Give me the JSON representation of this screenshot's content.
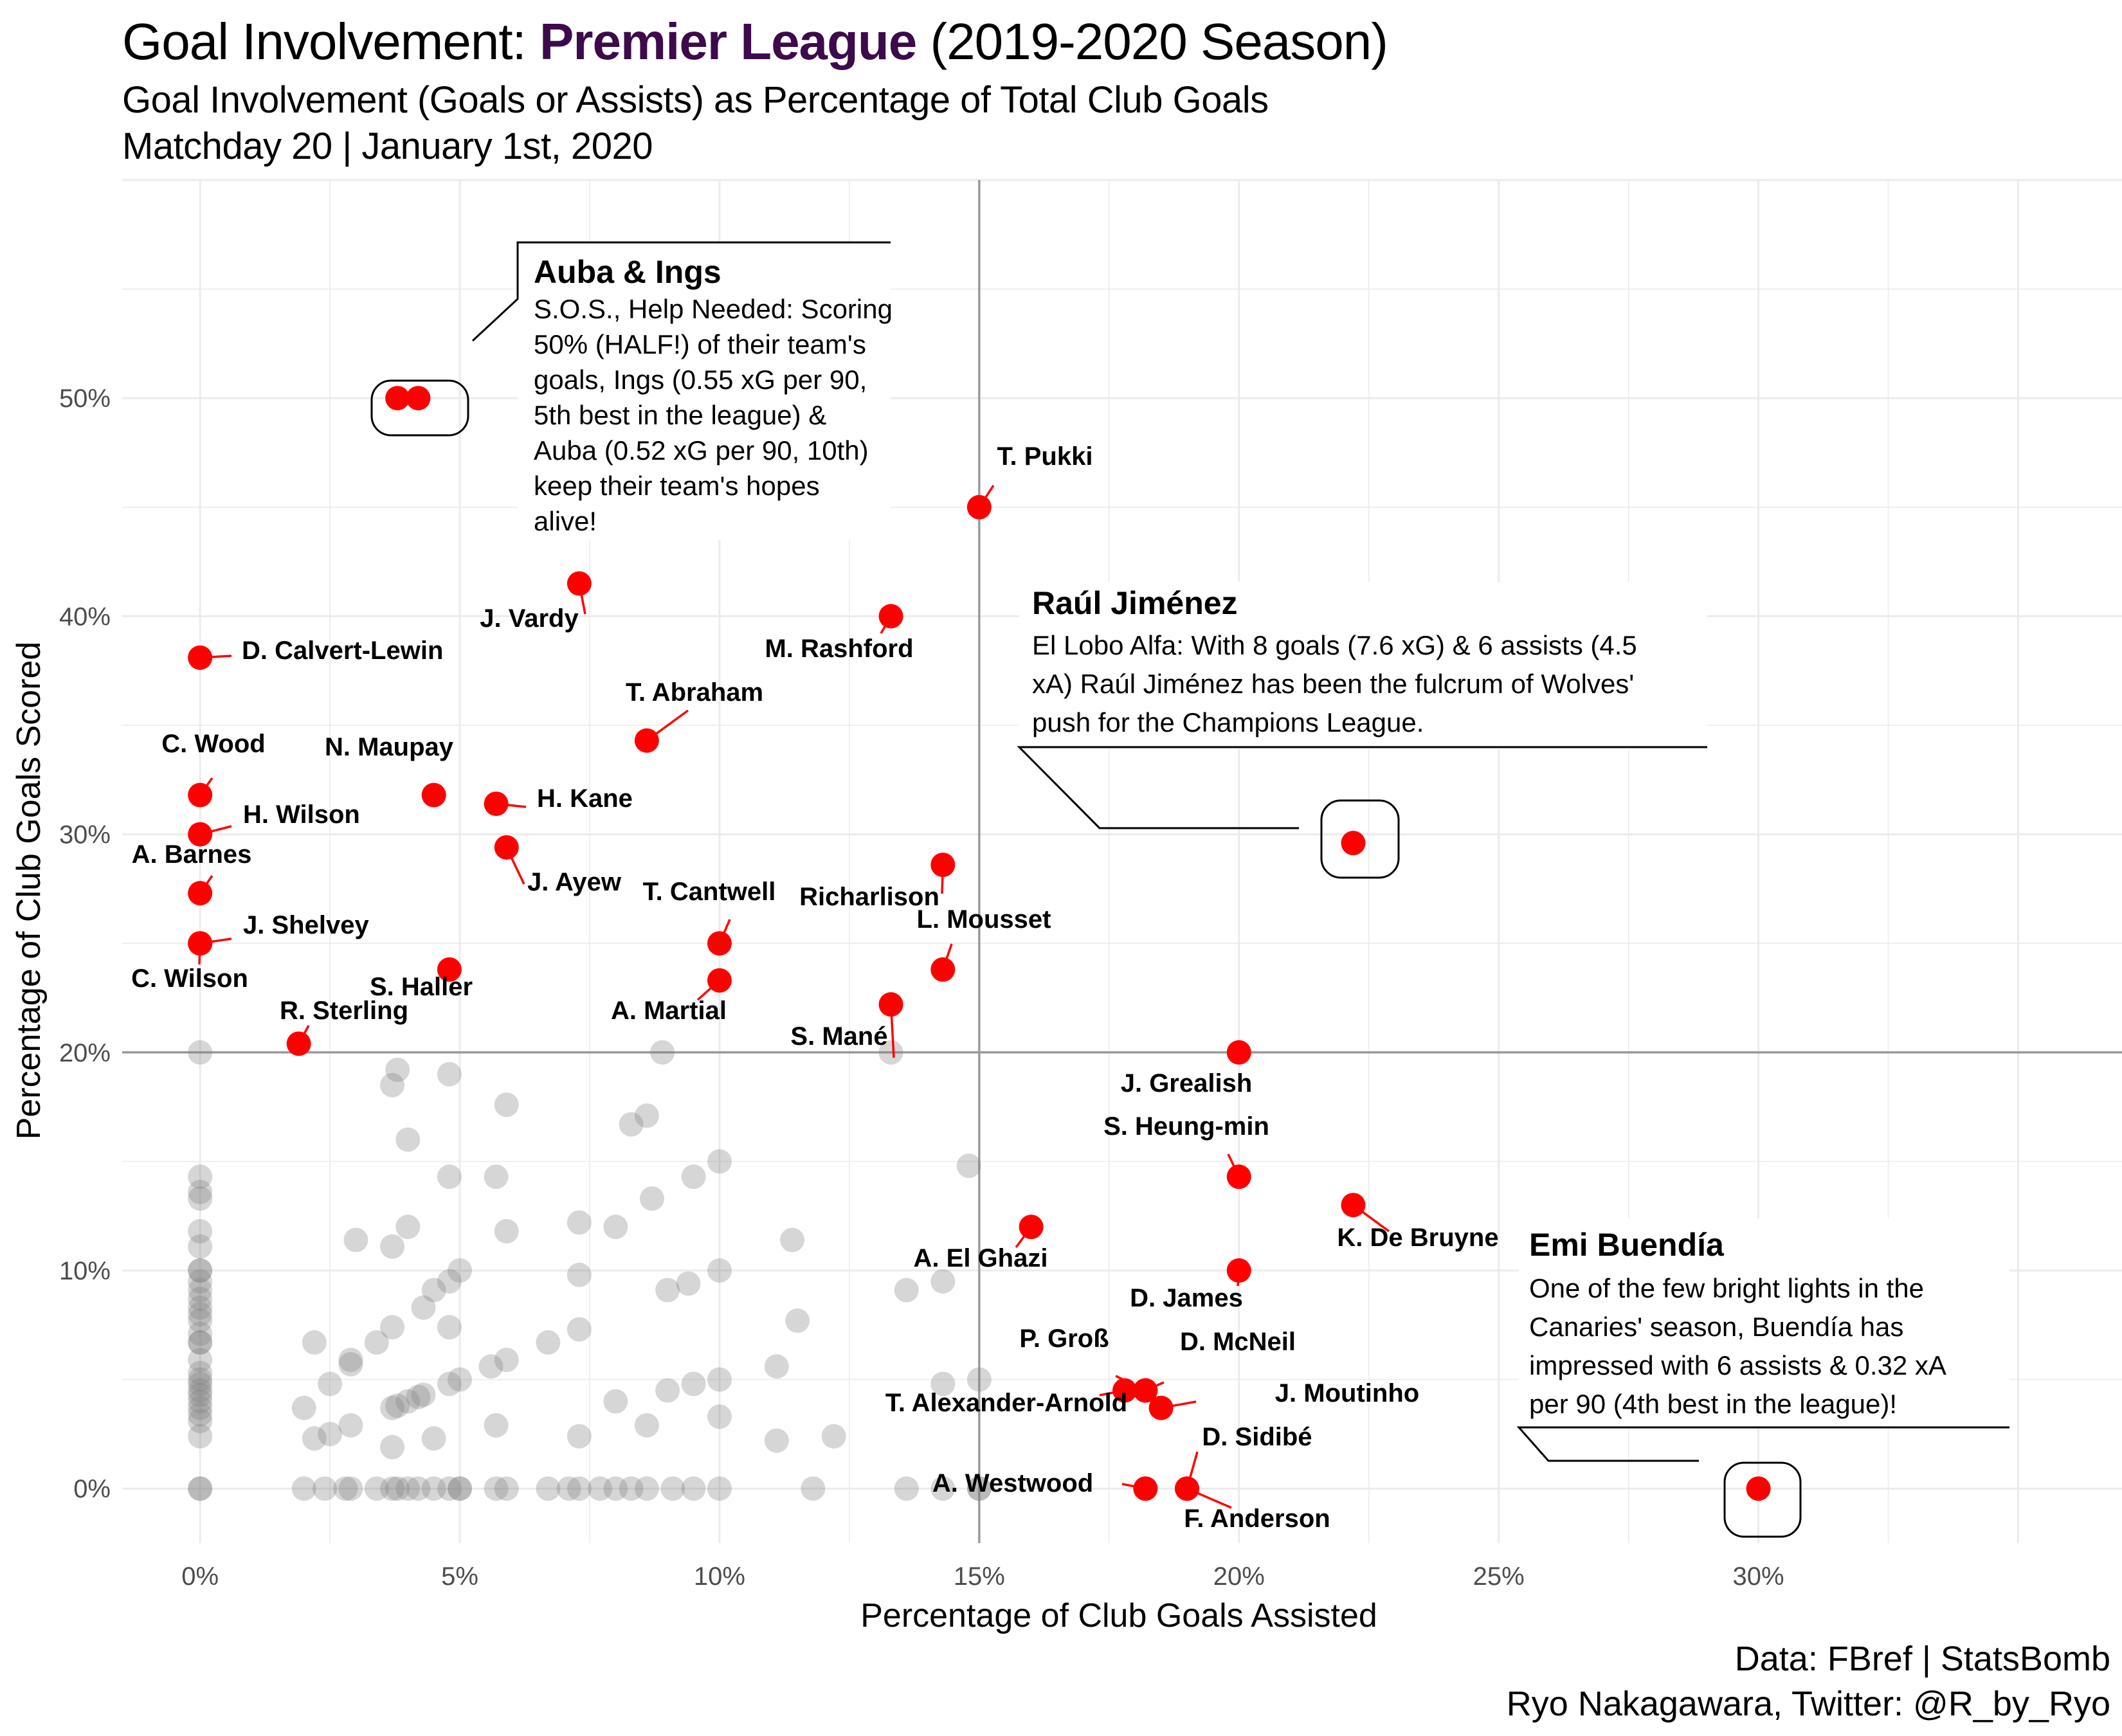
{
  "title": {
    "prefix": "Goal Involvement: ",
    "highlight": "Premier League",
    "suffix": " (2019-2020 Season)",
    "highlight_color": "#3d0a4b"
  },
  "subtitle_1": "Goal Involvement (Goals or Assists) as Percentage of Total Club Goals",
  "subtitle_2": "Matchday 20 | January 1st, 2020",
  "caption_1": "Data: FBref | StatsBomb",
  "caption_2": "Ryo Nakagawara, Twitter: @R_by_Ryo",
  "colors": {
    "highlight_point": "#ff0000",
    "background_point": "#7f7f7f",
    "grid": "#ebebeb",
    "reference_line": "#9a9a9a"
  },
  "chart_data": {
    "type": "scatter",
    "xlabel": "Percentage of Club Goals Assisted",
    "ylabel": "Percentage of Club Goals Scored",
    "xlim": [
      -1.5,
      37
    ],
    "ylim": [
      -2.5,
      60
    ],
    "x_ticks": [
      0,
      5,
      10,
      15,
      20,
      25,
      30
    ],
    "x_tick_labels": [
      "0%",
      "5%",
      "10%",
      "15%",
      "20%",
      "25%",
      "30%"
    ],
    "y_ticks": [
      0,
      10,
      20,
      30,
      40,
      50
    ],
    "y_tick_labels": [
      "0%",
      "10%",
      "20%",
      "30%",
      "40%",
      "50%"
    ],
    "reference_lines": {
      "x": 15,
      "y": 20
    },
    "grid": true,
    "highlighted_players": [
      {
        "name": "D. Calvert-Lewin",
        "x": 0,
        "y": 38.1
      },
      {
        "name": "C. Wood",
        "x": 0,
        "y": 31.8
      },
      {
        "name": "H. Wilson",
        "x": 0,
        "y": 30
      },
      {
        "name": "A. Barnes",
        "x": 0,
        "y": 27.3
      },
      {
        "name": "J. Shelvey",
        "x": 0,
        "y": 25
      },
      {
        "name": "C. Wilson",
        "x": 0,
        "y": 25
      },
      {
        "name": "R. Sterling",
        "x": 1.9,
        "y": 20.4
      },
      {
        "name": "",
        "x": 3.8,
        "y": 50
      },
      {
        "name": "",
        "x": 4.2,
        "y": 50
      },
      {
        "name": "N. Maupay",
        "x": 4.5,
        "y": 31.8
      },
      {
        "name": "S. Haller",
        "x": 4.8,
        "y": 23.8
      },
      {
        "name": "H. Kane",
        "x": 5.7,
        "y": 31.4
      },
      {
        "name": "J. Ayew",
        "x": 5.9,
        "y": 29.4
      },
      {
        "name": "J. Vardy",
        "x": 7.3,
        "y": 41.5
      },
      {
        "name": "T. Abraham",
        "x": 8.6,
        "y": 34.3
      },
      {
        "name": "T. Cantwell",
        "x": 10,
        "y": 25
      },
      {
        "name": "A. Martial",
        "x": 10,
        "y": 23.3
      },
      {
        "name": "M. Rashford",
        "x": 13.3,
        "y": 40
      },
      {
        "name": "S. Mané",
        "x": 13.3,
        "y": 22.2
      },
      {
        "name": "Richarlison",
        "x": 14.3,
        "y": 28.6
      },
      {
        "name": "L. Mousset",
        "x": 14.3,
        "y": 23.8
      },
      {
        "name": "T. Pukki",
        "x": 15,
        "y": 45
      },
      {
        "name": "A. El Ghazi",
        "x": 16,
        "y": 12
      },
      {
        "name": "T. Alexander-Arnold",
        "x": 17.8,
        "y": 4.5
      },
      {
        "name": "P. Groß",
        "x": 18.2,
        "y": 4.5
      },
      {
        "name": "D. McNeil",
        "x": 18.2,
        "y": 4.5
      },
      {
        "name": "J. Moutinho",
        "x": 18.5,
        "y": 3.7
      },
      {
        "name": "A. Westwood",
        "x": 18.2,
        "y": 0
      },
      {
        "name": "D. Sidibé",
        "x": 19,
        "y": 0
      },
      {
        "name": "F. Anderson",
        "x": 19,
        "y": 0
      },
      {
        "name": "J. Grealish",
        "x": 20,
        "y": 20
      },
      {
        "name": "S. Heung-min",
        "x": 20,
        "y": 14.3
      },
      {
        "name": "D. James",
        "x": 20,
        "y": 10
      },
      {
        "name": "K. De Bruyne",
        "x": 22.2,
        "y": 13
      },
      {
        "name": "",
        "x": 22.2,
        "y": 29.6
      },
      {
        "name": "",
        "x": 30,
        "y": 0
      }
    ],
    "other_players": [
      [
        0,
        20
      ],
      [
        0,
        14.3
      ],
      [
        0,
        13.6
      ],
      [
        0,
        13.3
      ],
      [
        0,
        11.8
      ],
      [
        0,
        11.1
      ],
      [
        0,
        10
      ],
      [
        0,
        10
      ],
      [
        0,
        9.5
      ],
      [
        0,
        9.1
      ],
      [
        0,
        8.7
      ],
      [
        0,
        8.3
      ],
      [
        0,
        8
      ],
      [
        0,
        7.7
      ],
      [
        0,
        7.1
      ],
      [
        0,
        6.7
      ],
      [
        0,
        6.7
      ],
      [
        0,
        5.9
      ],
      [
        0,
        5.3
      ],
      [
        0,
        5
      ],
      [
        0,
        4.8
      ],
      [
        0,
        4.5
      ],
      [
        0,
        4.3
      ],
      [
        0,
        4
      ],
      [
        0,
        3.7
      ],
      [
        0,
        3.4
      ],
      [
        0,
        3.1
      ],
      [
        0,
        2.4
      ],
      [
        0,
        0
      ],
      [
        0,
        0
      ],
      [
        2,
        3.7
      ],
      [
        2,
        0
      ],
      [
        2.2,
        6.7
      ],
      [
        2.2,
        2.3
      ],
      [
        2.4,
        0
      ],
      [
        2.5,
        4.8
      ],
      [
        2.5,
        2.5
      ],
      [
        2.8,
        0
      ],
      [
        2.9,
        5.9
      ],
      [
        2.9,
        5.7
      ],
      [
        2.9,
        2.9
      ],
      [
        2.9,
        0
      ],
      [
        3.0,
        11.4
      ],
      [
        3.4,
        6.7
      ],
      [
        3.4,
        0
      ],
      [
        3.7,
        3.7
      ],
      [
        3.7,
        1.9
      ],
      [
        3.7,
        0
      ],
      [
        3.7,
        18.5
      ],
      [
        3.7,
        11.1
      ],
      [
        3.7,
        7.4
      ],
      [
        3.8,
        19.2
      ],
      [
        3.8,
        3.8
      ],
      [
        3.8,
        0
      ],
      [
        4,
        4
      ],
      [
        4,
        16
      ],
      [
        4,
        12
      ],
      [
        4,
        0
      ],
      [
        4.2,
        4.2
      ],
      [
        4.2,
        0
      ],
      [
        4.3,
        8.3
      ],
      [
        4.3,
        4.3
      ],
      [
        4.5,
        2.3
      ],
      [
        4.5,
        9.1
      ],
      [
        4.5,
        0
      ],
      [
        4.8,
        14.3
      ],
      [
        4.8,
        4.8
      ],
      [
        4.8,
        0
      ],
      [
        4.8,
        19
      ],
      [
        5,
        5
      ],
      [
        5,
        10
      ],
      [
        5,
        0
      ],
      [
        5,
        0
      ],
      [
        4.8,
        7.4
      ],
      [
        4.8,
        9.5
      ],
      [
        5.6,
        5.6
      ],
      [
        5.7,
        2.9
      ],
      [
        5.7,
        14.3
      ],
      [
        5.7,
        0
      ],
      [
        5.9,
        5.9
      ],
      [
        5.9,
        11.8
      ],
      [
        5.9,
        17.6
      ],
      [
        5.9,
        0
      ],
      [
        6.7,
        6.7
      ],
      [
        6.7,
        0
      ],
      [
        7.1,
        0
      ],
      [
        7.3,
        12.2
      ],
      [
        7.3,
        9.8
      ],
      [
        7.3,
        7.3
      ],
      [
        7.3,
        2.4
      ],
      [
        7.3,
        0
      ],
      [
        7.7,
        0
      ],
      [
        8,
        0
      ],
      [
        8,
        4
      ],
      [
        8,
        12
      ],
      [
        8.3,
        16.7
      ],
      [
        8.3,
        0
      ],
      [
        8.6,
        17.1
      ],
      [
        8.6,
        2.9
      ],
      [
        8.6,
        0
      ],
      [
        8.7,
        13.3
      ],
      [
        8.9,
        20
      ],
      [
        9,
        9.1
      ],
      [
        9,
        4.5
      ],
      [
        9.1,
        0
      ],
      [
        9.4,
        9.4
      ],
      [
        9.5,
        14.3
      ],
      [
        9.5,
        4.8
      ],
      [
        9.5,
        0
      ],
      [
        10,
        15
      ],
      [
        10,
        10
      ],
      [
        10,
        5
      ],
      [
        10,
        3.3
      ],
      [
        10,
        0
      ],
      [
        11.1,
        5.6
      ],
      [
        11.1,
        2.2
      ],
      [
        11.4,
        11.4
      ],
      [
        11.5,
        7.7
      ],
      [
        11.8,
        0
      ],
      [
        12.2,
        2.4
      ],
      [
        13.3,
        20
      ],
      [
        13.6,
        9.1
      ],
      [
        13.6,
        0
      ],
      [
        14.3,
        9.5
      ],
      [
        14.3,
        4.8
      ],
      [
        14.3,
        0
      ],
      [
        14.8,
        14.8
      ],
      [
        15,
        5
      ],
      [
        15,
        0
      ],
      [
        15,
        0
      ]
    ],
    "annotations": [
      {
        "title": "Auba & Ings",
        "lines": [
          "S.O.S., Help Needed: Scoring",
          "50% (HALF!) of their team's",
          "goals, Ings (0.55 xG per 90,",
          "5th best in the league) &",
          "Auba (0.52 xG per 90, 10th)",
          "keep their team's hopes",
          "alive!"
        ]
      },
      {
        "title": "Raúl Jiménez",
        "lines": [
          "El Lobo Alfa: With 8 goals (7.6 xG) & 6 assists (4.5",
          "xA) Raúl Jiménez has been the fulcrum of Wolves'",
          "push for the Champions League."
        ]
      },
      {
        "title": "Emi Buendía",
        "lines": [
          "One of the few bright lights in the",
          "Canaries' season, Buendía has",
          "impressed with 6 assists & 0.32 xA",
          "per 90 (4th best in the league)!"
        ]
      }
    ]
  }
}
